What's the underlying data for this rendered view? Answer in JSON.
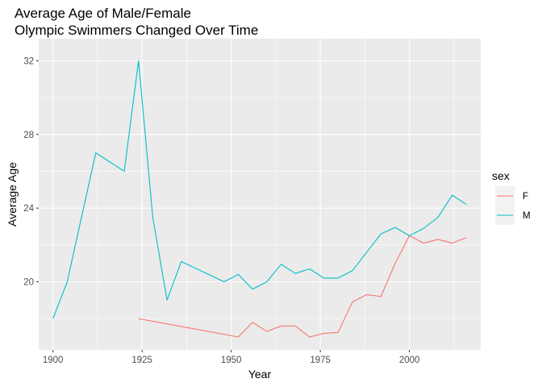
{
  "chart_data": {
    "type": "line",
    "title_line1": "Average Age of Male/Female",
    "title_line2": "Olympic Swimmers Changed Over Time",
    "xlabel": "Year",
    "ylabel": "Average Age",
    "xlim": [
      1896,
      2020
    ],
    "ylim": [
      16.3,
      33.2
    ],
    "x_ticks": [
      1900,
      1925,
      1950,
      1975,
      2000
    ],
    "y_ticks": [
      20,
      24,
      28,
      32
    ],
    "grid": true,
    "legend": {
      "title": "sex",
      "placement": "right",
      "entries": [
        {
          "label": "F",
          "color": "#F8766D"
        },
        {
          "label": "M",
          "color": "#00BFC4"
        }
      ]
    },
    "series": [
      {
        "name": "F",
        "color": "#F8766D",
        "points": [
          [
            1924,
            18.0
          ],
          [
            1952,
            17.0
          ],
          [
            1956,
            17.8
          ],
          [
            1960,
            17.3
          ],
          [
            1964,
            17.6
          ],
          [
            1968,
            17.6
          ],
          [
            1972,
            17.0
          ],
          [
            1976,
            17.2
          ],
          [
            1980,
            17.25
          ],
          [
            1984,
            18.9
          ],
          [
            1988,
            19.3
          ],
          [
            1992,
            19.2
          ],
          [
            1996,
            21.0
          ],
          [
            2000,
            22.5
          ],
          [
            2004,
            22.1
          ],
          [
            2008,
            22.3
          ],
          [
            2012,
            22.1
          ],
          [
            2016,
            22.4
          ]
        ]
      },
      {
        "name": "M",
        "color": "#00BFC4",
        "points": [
          [
            1900,
            18.0
          ],
          [
            1904,
            20.0
          ],
          [
            1908,
            23.5
          ],
          [
            1912,
            27.0
          ],
          [
            1920,
            26.0
          ],
          [
            1924,
            32.0
          ],
          [
            1928,
            23.5
          ],
          [
            1932,
            19.0
          ],
          [
            1936,
            21.1
          ],
          [
            1948,
            20.0
          ],
          [
            1952,
            20.4
          ],
          [
            1956,
            19.6
          ],
          [
            1960,
            20.0
          ],
          [
            1964,
            20.95
          ],
          [
            1968,
            20.45
          ],
          [
            1972,
            20.7
          ],
          [
            1976,
            20.2
          ],
          [
            1980,
            20.2
          ],
          [
            1984,
            20.6
          ],
          [
            1988,
            21.6
          ],
          [
            1992,
            22.6
          ],
          [
            1996,
            22.95
          ],
          [
            2000,
            22.5
          ],
          [
            2004,
            22.9
          ],
          [
            2008,
            23.5
          ],
          [
            2012,
            24.7
          ],
          [
            2016,
            24.2
          ]
        ]
      }
    ]
  }
}
